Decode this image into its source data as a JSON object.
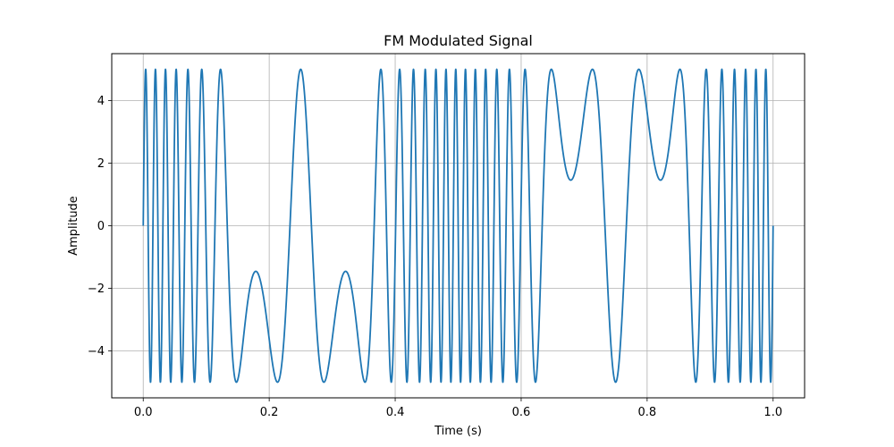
{
  "chart_data": {
    "type": "line",
    "title": "FM Modulated Signal",
    "xlabel": "Time (s)",
    "ylabel": "Amplitude",
    "xlim": [
      -0.05,
      1.05
    ],
    "ylim": [
      -5.5,
      5.5
    ],
    "x_ticks": [
      0.0,
      0.2,
      0.4,
      0.6,
      0.8,
      1.0
    ],
    "x_tick_labels": [
      "0.0",
      "0.2",
      "0.4",
      "0.6",
      "0.8",
      "1.0"
    ],
    "y_ticks": [
      -4,
      -2,
      0,
      2,
      4
    ],
    "y_tick_labels": [
      "−4",
      "−2",
      "0",
      "2",
      "4"
    ],
    "grid": true,
    "series": [
      {
        "color": "#1f77b4",
        "description_of_curve": "y = 5*sin(2*pi*25*t + 3*... )",
        "values": []
      }
    ]
  }
}
